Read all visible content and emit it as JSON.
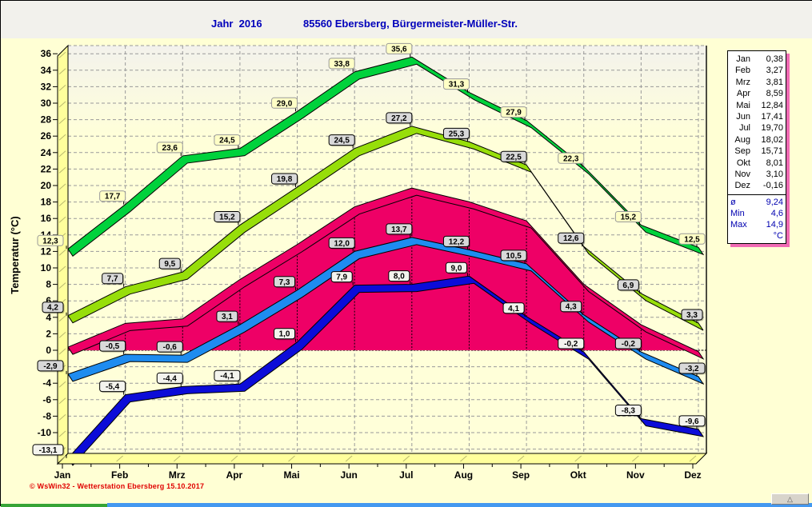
{
  "header": {
    "title_left": "Jahr  2016",
    "title_right": "85560 Ebersberg, Bürgermeister-Müller-Str."
  },
  "chart_data": {
    "type": "area",
    "title": "Jahr 2016 — 85560 Ebersberg, Bürgermeister-Müller-Str.",
    "ylabel": "Temperatur  (°C)",
    "xlabel": "",
    "grid": true,
    "legend_position": "none",
    "ylim": [
      -12.5,
      37
    ],
    "ytick_step": 2,
    "ytick_min": -12,
    "ytick_max": 36,
    "categories": [
      "Jan",
      "Feb",
      "Mrz",
      "Apr",
      "Mai",
      "Jun",
      "Jul",
      "Aug",
      "Sep",
      "Okt",
      "Nov",
      "Dez"
    ],
    "series": [
      {
        "name": "absolute-max",
        "style": "ribbon",
        "color": "#00d23c",
        "label_bg": "#ffffc6",
        "label_border": "#999999",
        "values": [
          12.3,
          17.7,
          23.6,
          24.5,
          29.0,
          33.8,
          35.6,
          31.3,
          27.9,
          22.3,
          15.2,
          12.5
        ]
      },
      {
        "name": "average-max",
        "style": "ribbon",
        "color": "#97de0a",
        "label_bg": "#d9d9d9",
        "label_border": "#000000",
        "values": [
          4.2,
          7.7,
          9.5,
          15.2,
          19.8,
          24.5,
          27.2,
          25.3,
          22.5,
          12.6,
          6.9,
          3.3
        ]
      },
      {
        "name": "monthly-mean",
        "style": "area",
        "color": "#ee0066",
        "label_bg": null,
        "label_border": null,
        "values": [
          0.38,
          3.27,
          3.81,
          8.59,
          12.84,
          17.41,
          19.7,
          18.02,
          15.71,
          8.01,
          3.1,
          -0.16
        ]
      },
      {
        "name": "average-min",
        "style": "ribbon",
        "color": "#1e8cf0",
        "label_bg": "#d9d9d9",
        "label_border": "#000000",
        "values": [
          -2.9,
          -0.5,
          -0.6,
          3.1,
          7.3,
          12.0,
          13.7,
          12.2,
          10.5,
          4.3,
          -0.2,
          -3.2
        ]
      },
      {
        "name": "absolute-min",
        "style": "ribbon",
        "color": "#0c0cd8",
        "label_bg": "#f4f4ee",
        "label_border": "#000000",
        "values": [
          -13.1,
          -5.4,
          -4.4,
          -4.1,
          1.0,
          7.9,
          8.0,
          9.0,
          4.1,
          -0.2,
          -8.3,
          -9.6
        ]
      }
    ]
  },
  "stats_panel": {
    "months": [
      {
        "label": "Jan",
        "value": "0,38"
      },
      {
        "label": "Feb",
        "value": "3,27"
      },
      {
        "label": "Mrz",
        "value": "3,81"
      },
      {
        "label": "Apr",
        "value": "8,59"
      },
      {
        "label": "Mai",
        "value": "12,84"
      },
      {
        "label": "Jun",
        "value": "17,41"
      },
      {
        "label": "Jul",
        "value": "19,70"
      },
      {
        "label": "Aug",
        "value": "18,02"
      },
      {
        "label": "Sep",
        "value": "15,71"
      },
      {
        "label": "Okt",
        "value": "8,01"
      },
      {
        "label": "Nov",
        "value": "3,10"
      },
      {
        "label": "Dez",
        "value": "-0,16"
      }
    ],
    "summary": [
      {
        "label": "ø",
        "value": "9,24"
      },
      {
        "label": "Min",
        "value": "4,6"
      },
      {
        "label": "Max",
        "value": "14,9"
      }
    ],
    "unit": "°C"
  },
  "footer": {
    "copyright": "© WsWin32 - Wetterstation Ebersberg  15.10.2017"
  },
  "scroll": {
    "button_glyph": "△"
  }
}
